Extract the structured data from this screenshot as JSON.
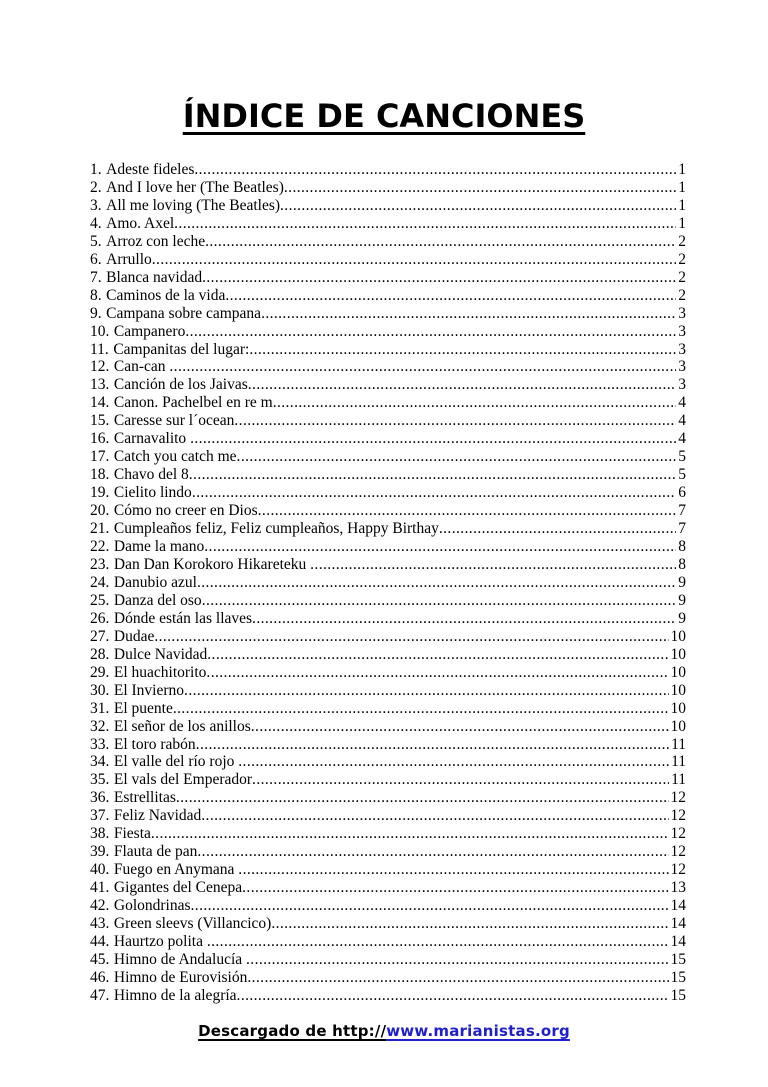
{
  "document": {
    "title": "ÍNDICE DE CANCIONES"
  },
  "index": {
    "entries": [
      {
        "num": "1.",
        "title": "Adeste fideles",
        "page": "1"
      },
      {
        "num": "2.",
        "title": "And I love her (The Beatles)",
        "page": "1"
      },
      {
        "num": "3.",
        "title": "All me loving (The Beatles)",
        "page": "1"
      },
      {
        "num": "4.",
        "title": "Amo. Axel",
        "page": "1"
      },
      {
        "num": "5.",
        "title": "Arroz con leche",
        "page": "2"
      },
      {
        "num": "6.",
        "title": "Arrullo",
        "page": "2"
      },
      {
        "num": "7.",
        "title": "Blanca navidad",
        "page": "2"
      },
      {
        "num": "8.",
        "title": "Caminos de la vida",
        "page": "2"
      },
      {
        "num": "9.",
        "title": "Campana sobre campana",
        "page": "3"
      },
      {
        "num": "10.",
        "title": "Campanero",
        "page": "3"
      },
      {
        "num": "11.",
        "title": "Campanitas del lugar:",
        "page": "3"
      },
      {
        "num": "12.",
        "title": "Can-can ",
        "page": "3"
      },
      {
        "num": "13.",
        "title": "Canción de los Jaivas",
        "page": "3"
      },
      {
        "num": "14.",
        "title": "Canon. Pachelbel en re m",
        "page": "4"
      },
      {
        "num": "15.",
        "title": "Caresse sur l´ocean",
        "page": "4"
      },
      {
        "num": "16.",
        "title": "Carnavalito ",
        "page": "4"
      },
      {
        "num": "17.",
        "title": "Catch you catch me",
        "page": "5"
      },
      {
        "num": "18.",
        "title": "Chavo del 8",
        "page": "5"
      },
      {
        "num": "19.",
        "title": "Cielito lindo",
        "page": "6"
      },
      {
        "num": "20.",
        "title": "Cómo no creer en Dios",
        "page": "7"
      },
      {
        "num": "21.",
        "title": "Cumpleaños feliz, Feliz cumpleaños, Happy Birthay",
        "page": "7"
      },
      {
        "num": "22.",
        "title": "Dame la mano",
        "page": "8"
      },
      {
        "num": "23.",
        "title": "Dan Dan Korokoro Hikareteku ",
        "page": "8"
      },
      {
        "num": "24.",
        "title": "Danubio azul",
        "page": "9"
      },
      {
        "num": "25.",
        "title": "Danza del oso",
        "page": "9"
      },
      {
        "num": "26.",
        "title": "Dónde están las llaves",
        "page": "9"
      },
      {
        "num": "27.",
        "title": "Dudae",
        "page": "10"
      },
      {
        "num": "28.",
        "title": "Dulce Navidad",
        "page": "10"
      },
      {
        "num": "29.",
        "title": "El huachitorito",
        "page": "10"
      },
      {
        "num": "30.",
        "title": "El Invierno",
        "page": "10"
      },
      {
        "num": "31.",
        "title": "El puente",
        "page": "10"
      },
      {
        "num": "32.",
        "title": "El señor de los anillos",
        "page": "10"
      },
      {
        "num": "33.",
        "title": "El toro rabón",
        "page": "11"
      },
      {
        "num": "34.",
        "title": "El valle del río rojo ",
        "page": "11"
      },
      {
        "num": "35.",
        "title": "El vals del Emperador",
        "page": "11"
      },
      {
        "num": "36.",
        "title": "Estrellitas",
        "page": "12"
      },
      {
        "num": "37.",
        "title": "Feliz Navidad",
        "page": "12"
      },
      {
        "num": "38.",
        "title": "Fiesta",
        "page": "12"
      },
      {
        "num": "39.",
        "title": "Flauta de pan",
        "page": "12"
      },
      {
        "num": "40.",
        "title": "Fuego en Anymana ",
        "page": "12"
      },
      {
        "num": "41.",
        "title": "Gigantes del Cenepa",
        "page": "13"
      },
      {
        "num": "42.",
        "title": "Golondrinas",
        "page": "14"
      },
      {
        "num": "43.",
        "title": "Green sleevs (Villancico)",
        "page": "14"
      },
      {
        "num": "44.",
        "title": "Haurtzo polita ",
        "page": "14"
      },
      {
        "num": "45.",
        "title": "Himno de Andalucía ",
        "page": "15"
      },
      {
        "num": "46.",
        "title": "Himno de Eurovisión",
        "page": "15"
      },
      {
        "num": "47.",
        "title": "Himno de la alegría",
        "page": "15"
      }
    ]
  },
  "footer": {
    "prefix": "Descargado de http://",
    "link": "www.marianistas.org",
    "link_color": "#1f1fcc"
  }
}
